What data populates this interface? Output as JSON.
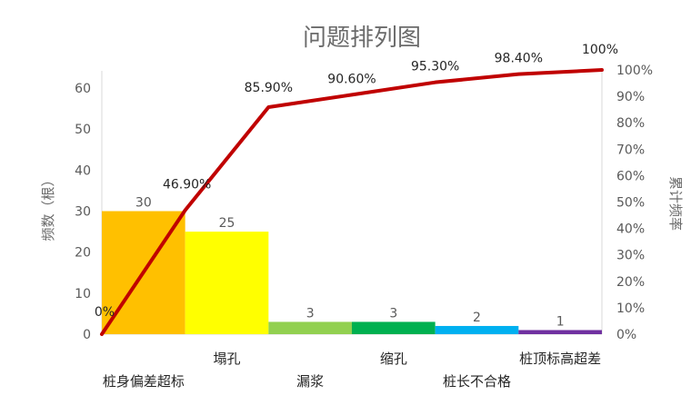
{
  "chart_data": {
    "type": "pareto",
    "title": "问题排列图",
    "ylabel": "频数（根）",
    "y2label": "累计频率",
    "categories": [
      "桩身偏差超标",
      "塌孔",
      "漏浆",
      "缩孔",
      "桩长不合格",
      "桩顶标高超差"
    ],
    "values": [
      30,
      25,
      3,
      3,
      2,
      1
    ],
    "bar_colors": [
      "#ffc000",
      "#ffff00",
      "#92d050",
      "#00b050",
      "#00b0f0",
      "#7030a0"
    ],
    "ylim": [
      0,
      65
    ],
    "yticks": [
      0,
      10,
      20,
      30,
      40,
      50,
      60
    ],
    "y2lim": [
      0,
      100
    ],
    "y2ticks": [
      "0%",
      "10%",
      "20%",
      "30%",
      "40%",
      "50%",
      "60%",
      "70%",
      "80%",
      "90%",
      "100%"
    ],
    "cumulative_percent": [
      0,
      46.9,
      85.9,
      90.6,
      95.3,
      98.4,
      100
    ],
    "cumulative_labels": [
      "0%",
      "46.90%",
      "85.90%",
      "90.60%",
      "95.30%",
      "98.40%",
      "100%"
    ],
    "line_color": "#c00000",
    "grid": false
  }
}
